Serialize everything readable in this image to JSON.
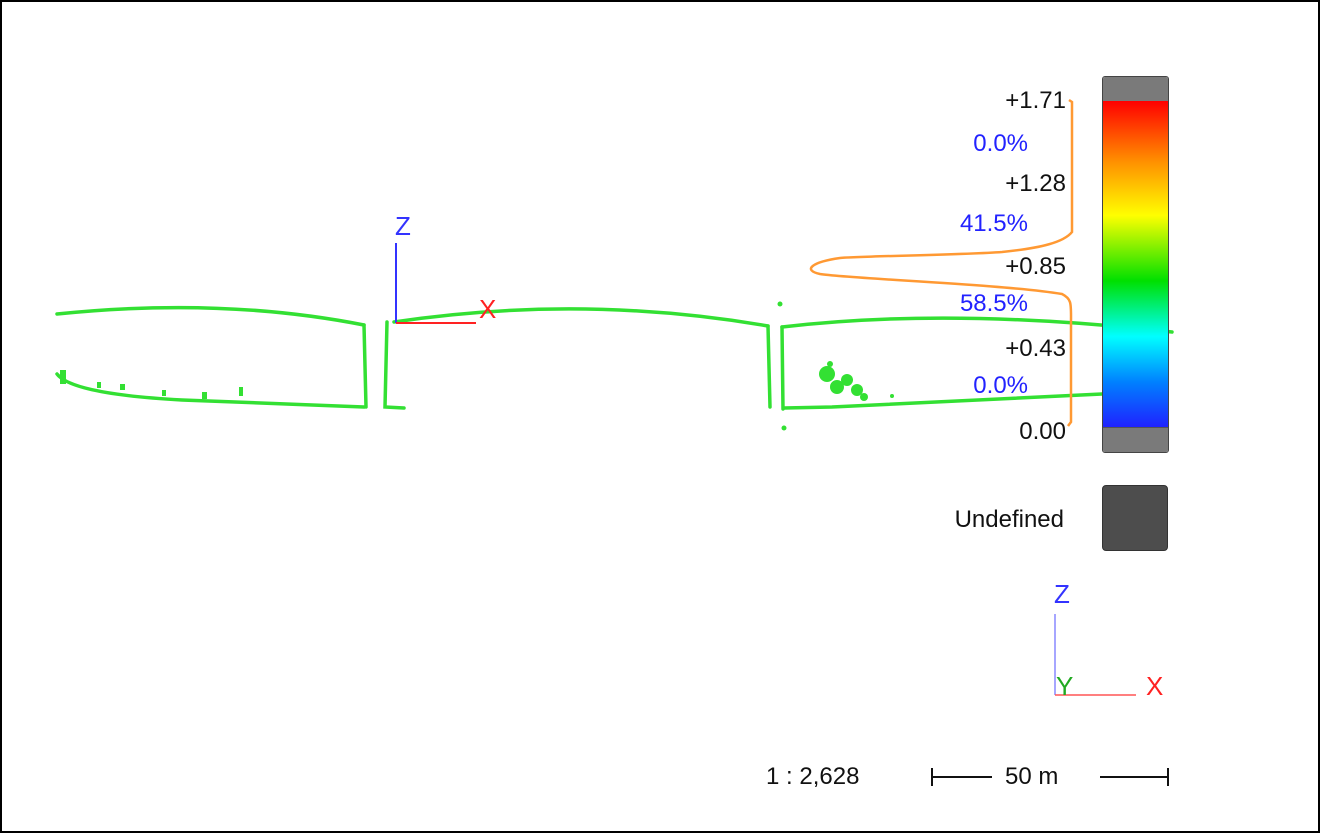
{
  "view_axes": {
    "z": "Z",
    "x": "X"
  },
  "legend": {
    "value_labels": [
      "+1.71",
      "+1.28",
      "+0.85",
      "+0.43",
      "0.00"
    ],
    "percent_labels": [
      "0.0%",
      "41.5%",
      "58.5%",
      "0.0%"
    ],
    "undefined_label": "Undefined",
    "colors": {
      "value_text": "#111111",
      "percent_text": "#2222ff",
      "histogram": "#ff9933",
      "undefined": "#4d4d4d",
      "out_of_range": "#7a7a7a"
    },
    "colormap": [
      "#ff0000",
      "#ff8c00",
      "#ffff00",
      "#00e000",
      "#00ffff",
      "#0080ff",
      "#2020ff"
    ]
  },
  "axis_triad": {
    "z": "Z",
    "y": "Y",
    "x": "X"
  },
  "scale": {
    "ratio": "1 : 2,628",
    "distance": "50 m"
  },
  "point_cloud": {
    "color": "#33e033"
  }
}
